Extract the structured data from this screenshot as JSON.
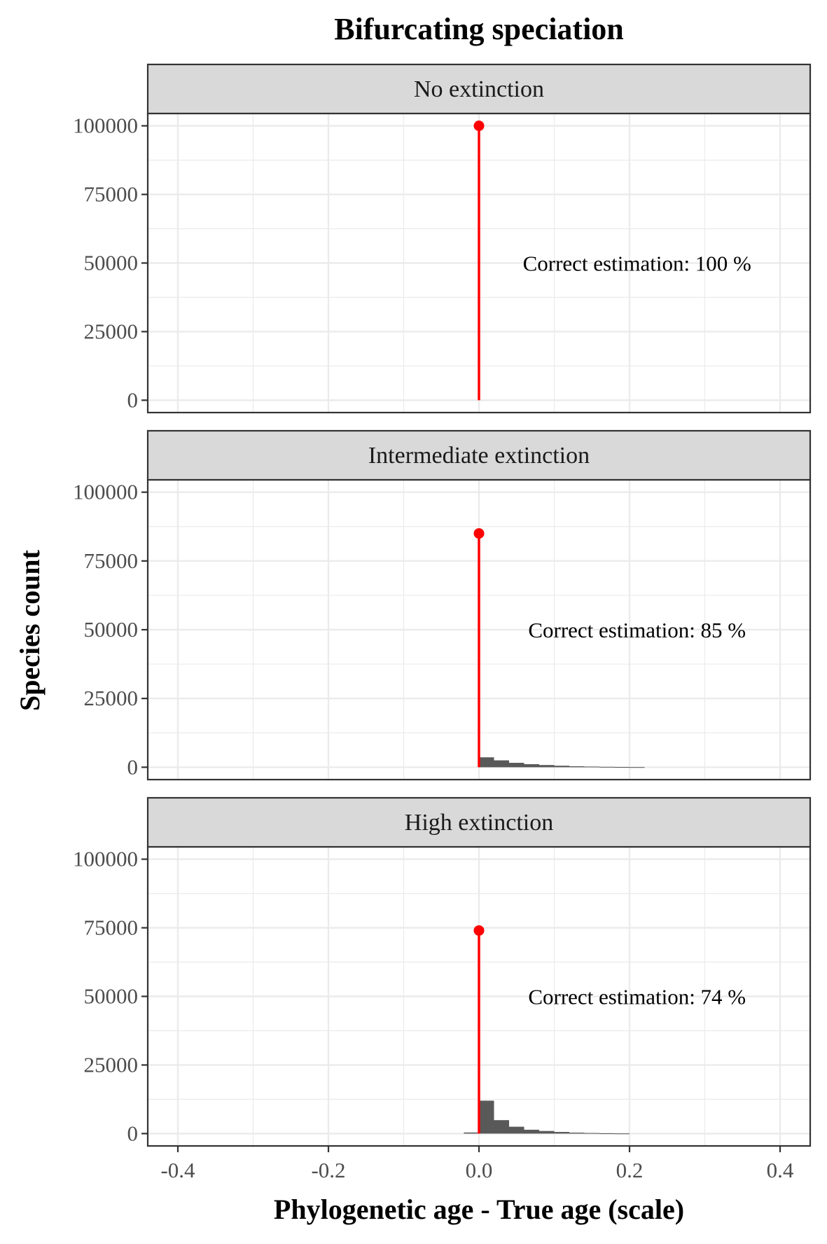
{
  "chart_data": {
    "type": "bar",
    "title": "Bifurcating speciation",
    "xlabel": "Phylogenetic age - True age (scale)",
    "ylabel": "Species count",
    "xlim": [
      -0.44,
      0.44
    ],
    "ylim": [
      -4500,
      104500
    ],
    "x_ticks": [
      "-0.4",
      "-0.2",
      "0.0",
      "0.2",
      "0.4"
    ],
    "x_tick_values": [
      -0.4,
      -0.2,
      0.0,
      0.2,
      0.4
    ],
    "y_ticks": [
      "0",
      "25000",
      "50000",
      "75000",
      "100000"
    ],
    "y_tick_values": [
      0,
      25000,
      50000,
      75000,
      100000
    ],
    "grid": true,
    "colors": {
      "exact": "#ff0000",
      "histogram": "#595959",
      "strip": "#d9d9d9",
      "grid": "#ebebeb"
    },
    "panels": [
      {
        "label": "No extinction",
        "correct_value": 100000,
        "annotation": "Correct estimation: 100 %",
        "bins": []
      },
      {
        "label": "Intermediate extinction",
        "correct_value": 85000,
        "annotation": "Correct estimation: 85 %",
        "bins": [
          {
            "x0": 0.0,
            "x1": 0.02,
            "count": 3600
          },
          {
            "x0": 0.02,
            "x1": 0.04,
            "count": 2500
          },
          {
            "x0": 0.04,
            "x1": 0.06,
            "count": 1600
          },
          {
            "x0": 0.06,
            "x1": 0.08,
            "count": 1100
          },
          {
            "x0": 0.08,
            "x1": 0.1,
            "count": 800
          },
          {
            "x0": 0.1,
            "x1": 0.12,
            "count": 550
          },
          {
            "x0": 0.12,
            "x1": 0.14,
            "count": 350
          },
          {
            "x0": 0.14,
            "x1": 0.16,
            "count": 230
          },
          {
            "x0": 0.16,
            "x1": 0.18,
            "count": 140
          },
          {
            "x0": 0.18,
            "x1": 0.2,
            "count": 80
          },
          {
            "x0": 0.2,
            "x1": 0.22,
            "count": 40
          }
        ]
      },
      {
        "label": "High extinction",
        "correct_value": 74000,
        "annotation": "Correct estimation: 74 %",
        "bins": [
          {
            "x0": -0.02,
            "x1": 0.0,
            "count": 400
          },
          {
            "x0": 0.0,
            "x1": 0.02,
            "count": 12000
          },
          {
            "x0": 0.02,
            "x1": 0.04,
            "count": 4900
          },
          {
            "x0": 0.04,
            "x1": 0.06,
            "count": 2500
          },
          {
            "x0": 0.06,
            "x1": 0.08,
            "count": 1400
          },
          {
            "x0": 0.08,
            "x1": 0.1,
            "count": 950
          },
          {
            "x0": 0.1,
            "x1": 0.12,
            "count": 600
          },
          {
            "x0": 0.12,
            "x1": 0.14,
            "count": 350
          },
          {
            "x0": 0.14,
            "x1": 0.16,
            "count": 200
          },
          {
            "x0": 0.16,
            "x1": 0.18,
            "count": 100
          },
          {
            "x0": 0.18,
            "x1": 0.2,
            "count": 50
          }
        ]
      }
    ]
  }
}
